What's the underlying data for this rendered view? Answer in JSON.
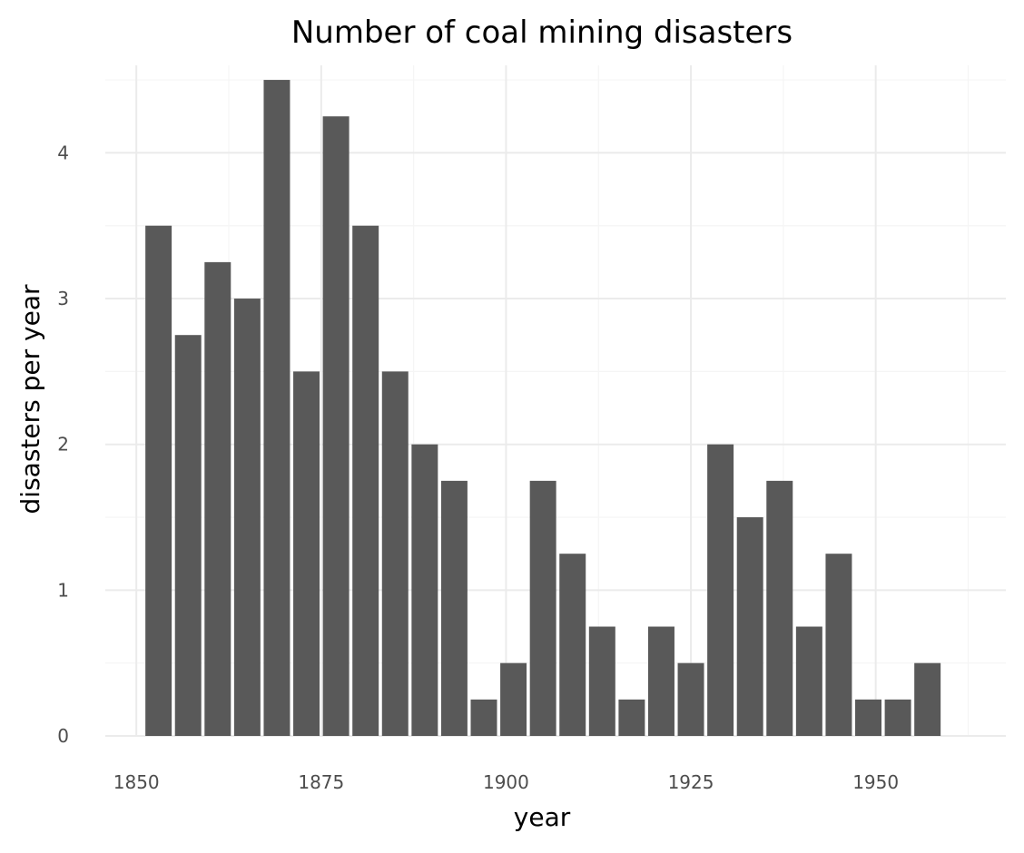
{
  "chart_data": {
    "type": "bar",
    "title": "Number of coal mining disasters",
    "xlabel": "year",
    "ylabel": "disasters per year",
    "bin_width": 4,
    "x": [
      1853,
      1857,
      1861,
      1865,
      1869,
      1873,
      1877,
      1881,
      1885,
      1889,
      1893,
      1897,
      1901,
      1905,
      1909,
      1913,
      1917,
      1921,
      1925,
      1929,
      1933,
      1937,
      1941,
      1945,
      1949,
      1953,
      1957
    ],
    "values": [
      3.5,
      2.75,
      3.25,
      3.0,
      4.5,
      2.5,
      4.25,
      3.5,
      2.5,
      2.0,
      1.75,
      0.25,
      0.5,
      1.75,
      1.25,
      0.75,
      0.25,
      0.75,
      0.5,
      2.0,
      1.5,
      1.75,
      0.75,
      1.25,
      0.25,
      0.25,
      0.5
    ],
    "xlim": [
      1845.8,
      1967.6
    ],
    "ylim": [
      0,
      4.6
    ],
    "x_ticks": [
      1850,
      1875,
      1900,
      1925,
      1950
    ],
    "y_ticks": [
      0,
      1,
      2,
      3,
      4
    ],
    "x_minor_ticks": [
      1862.5,
      1887.5,
      1912.5,
      1937.5,
      1962.5
    ],
    "y_minor_ticks": [
      0.5,
      1.5,
      2.5,
      3.5,
      4.5
    ],
    "grid": true,
    "bar_color": "#595959",
    "background": "#ffffff",
    "grid_color": "#ebebeb"
  }
}
